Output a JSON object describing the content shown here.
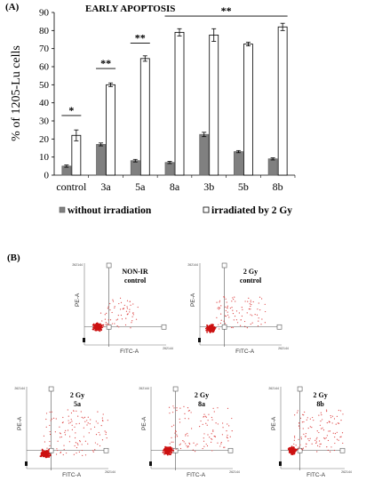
{
  "panel_a_label": "(A)",
  "panel_b_label": "(B)",
  "chart_data": {
    "type": "bar",
    "title": "EARLY APOPTOSIS",
    "ylabel": "% of 1205-Lu cells",
    "xlabel": "",
    "ylim": [
      0,
      90
    ],
    "yticks": [
      "0",
      "10",
      "20",
      "30",
      "40",
      "50",
      "60",
      "70",
      "80",
      "90"
    ],
    "categories": [
      "control",
      "3a",
      "5a",
      "8a",
      "3b",
      "5b",
      "8b"
    ],
    "series": [
      {
        "name": "without irradiation",
        "color": "#808080",
        "values": [
          5,
          17,
          8,
          7,
          22.5,
          13,
          9
        ],
        "errors": [
          0.6,
          0.8,
          0.7,
          0.6,
          1.2,
          0.6,
          0.6
        ]
      },
      {
        "name": "irradiated by 2 Gy",
        "color": "#ffffff",
        "values": [
          22,
          50,
          64.5,
          79,
          77.5,
          72.5,
          82
        ],
        "errors": [
          3,
          1,
          1.5,
          2,
          3.5,
          1,
          2
        ]
      }
    ],
    "significance": [
      {
        "label": "*",
        "from": "control",
        "to": "control",
        "level": 33
      },
      {
        "label": "**",
        "from": "3a",
        "to": "3a",
        "level": 59
      },
      {
        "label": "**",
        "from": "5a",
        "to": "5a",
        "level": 73
      },
      {
        "label": "**",
        "from": "8a",
        "to": "8b",
        "level": 88
      }
    ],
    "legend_position": "bottom"
  },
  "flow_plots": [
    {
      "label_line1": "NON-IR",
      "label_line2": "control",
      "y_axis": "PE-A",
      "x_axis": "FITC-A",
      "max": "262144"
    },
    {
      "label_line1": "2 Gy",
      "label_line2": "control",
      "y_axis": "PE-A",
      "x_axis": "FITC-A",
      "max": "262144"
    },
    {
      "label_line1": "2 Gy",
      "label_line2": "5a",
      "y_axis": "PE-A",
      "x_axis": "FITC-A",
      "max": "262144"
    },
    {
      "label_line1": "2 Gy",
      "label_line2": "8a",
      "y_axis": "PE-A",
      "x_axis": "FITC-A",
      "max": "262144"
    },
    {
      "label_line1": "2 Gy",
      "label_line2": "8b",
      "y_axis": "PE-A",
      "x_axis": "FITC-A",
      "max": "262144"
    }
  ],
  "colors": {
    "scatter_dense": "#cc1111",
    "scatter_sparse": "#dd4444",
    "bar_gray": "#808080"
  }
}
